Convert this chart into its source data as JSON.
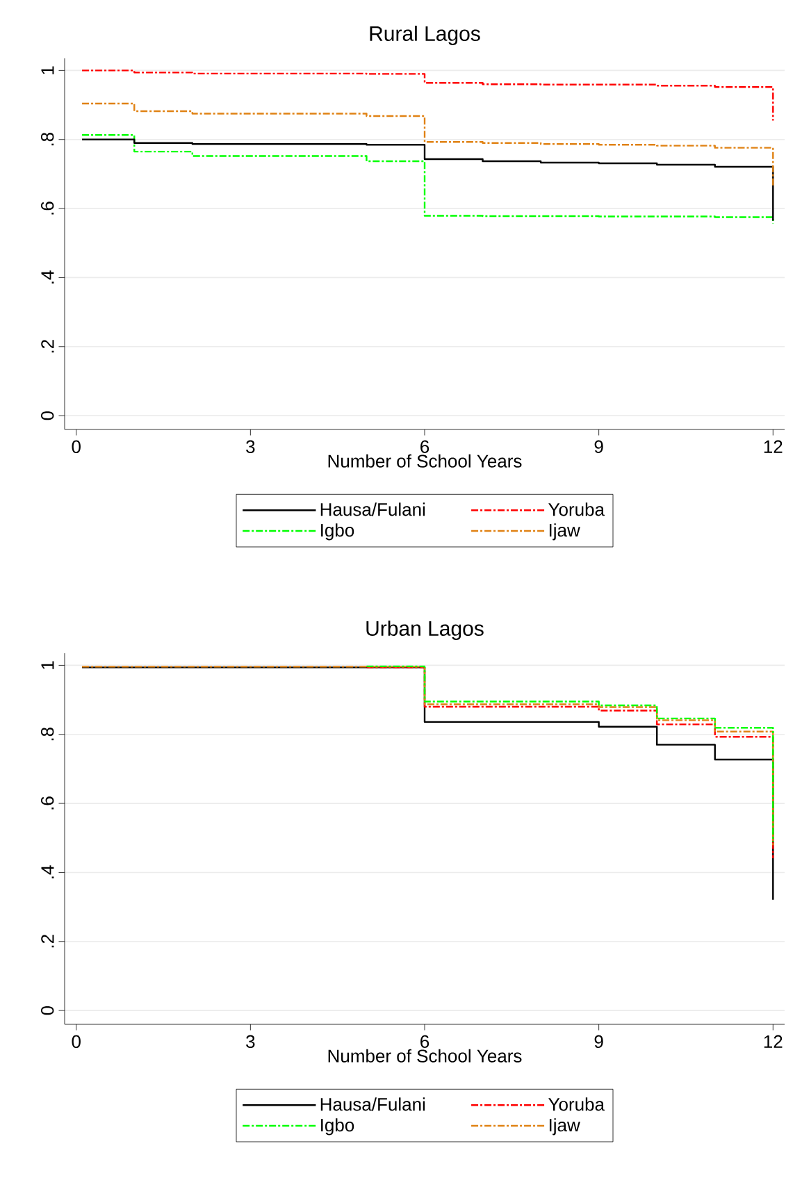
{
  "chart_data": [
    {
      "type": "step",
      "title": "Rural Lagos",
      "xlabel": "Number of School Years",
      "xlim": [
        -0.2,
        12.2
      ],
      "xticks": [
        0,
        3,
        6,
        9,
        12
      ],
      "ylim": [
        -0.04,
        1.035
      ],
      "yticks": [
        0,
        {
          "value": 0.2,
          "label": ".2"
        },
        {
          "value": 0.4,
          "label": ".4"
        },
        {
          "value": 0.6,
          "label": ".6"
        },
        {
          "value": 0.8,
          "label": ".8"
        },
        1
      ],
      "grid": "y",
      "legend": "bottom",
      "x": [
        0.1,
        1,
        2,
        3,
        4,
        5,
        6,
        7,
        8,
        9,
        10,
        11,
        12
      ],
      "series": [
        {
          "name": "Hausa/Fulani",
          "color": "#000000",
          "line_style": "solid",
          "values": [
            0.8,
            0.79,
            0.787,
            0.787,
            0.787,
            0.785,
            0.743,
            0.737,
            0.733,
            0.731,
            0.727,
            0.721,
            0.565
          ]
        },
        {
          "name": "Yoruba",
          "color": "#ff0000",
          "line_style": "dashed",
          "values": [
            1.0,
            0.994,
            0.991,
            0.991,
            0.991,
            0.99,
            0.964,
            0.96,
            0.959,
            0.959,
            0.956,
            0.952,
            0.855
          ]
        },
        {
          "name": "Igbo",
          "color": "#00ff00",
          "line_style": "dashed",
          "values": [
            0.813,
            0.765,
            0.752,
            0.752,
            0.752,
            0.737,
            0.579,
            0.578,
            0.578,
            0.577,
            0.577,
            0.575,
            0.557
          ]
        },
        {
          "name": "Ijaw",
          "color": "#e08214",
          "line_style": "dashed",
          "values": [
            0.904,
            0.882,
            0.875,
            0.875,
            0.875,
            0.868,
            0.793,
            0.79,
            0.787,
            0.785,
            0.782,
            0.776,
            0.666
          ]
        }
      ]
    },
    {
      "type": "step",
      "title": "Urban Lagos",
      "xlabel": "Number of School Years",
      "xlim": [
        -0.2,
        12.2
      ],
      "xticks": [
        0,
        3,
        6,
        9,
        12
      ],
      "ylim": [
        -0.04,
        1.035
      ],
      "yticks": [
        0,
        {
          "value": 0.2,
          "label": ".2"
        },
        {
          "value": 0.4,
          "label": ".4"
        },
        {
          "value": 0.6,
          "label": ".6"
        },
        {
          "value": 0.8,
          "label": ".8"
        },
        1
      ],
      "grid": "y",
      "legend": "bottom",
      "x": [
        0.1,
        1,
        2,
        3,
        4,
        5,
        6,
        7,
        8,
        9,
        10,
        11,
        12
      ],
      "series": [
        {
          "name": "Hausa/Fulani",
          "color": "#000000",
          "line_style": "solid",
          "values": [
            0.994,
            0.994,
            0.994,
            0.994,
            0.994,
            0.994,
            0.836,
            0.836,
            0.836,
            0.822,
            0.77,
            0.727,
            0.321
          ]
        },
        {
          "name": "Yoruba",
          "color": "#ff0000",
          "line_style": "dashed",
          "values": [
            null,
            null,
            null,
            null,
            null,
            0.994,
            0.88,
            0.88,
            0.88,
            0.869,
            0.829,
            0.793,
            0.441
          ]
        },
        {
          "name": "Igbo",
          "color": "#00ff00",
          "line_style": "dashed",
          "values": [
            null,
            null,
            null,
            null,
            null,
            0.997,
            0.895,
            0.895,
            0.895,
            0.884,
            0.846,
            0.819,
            0.489
          ]
        },
        {
          "name": "Ijaw",
          "color": "#e08214",
          "line_style": "dashed",
          "values": [
            0.996,
            0.996,
            0.996,
            0.996,
            0.996,
            0.996,
            0.887,
            0.887,
            0.887,
            0.879,
            0.841,
            0.808,
            0.479
          ]
        }
      ]
    }
  ]
}
